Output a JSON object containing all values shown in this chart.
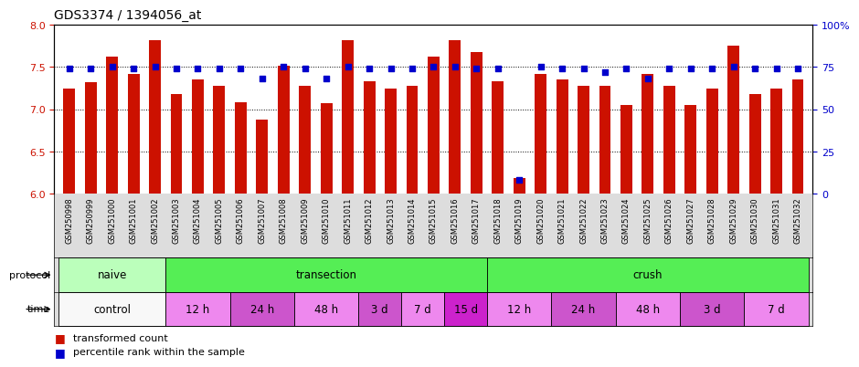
{
  "title": "GDS3374 / 1394056_at",
  "samples": [
    "GSM250998",
    "GSM250999",
    "GSM251000",
    "GSM251001",
    "GSM251002",
    "GSM251003",
    "GSM251004",
    "GSM251005",
    "GSM251006",
    "GSM251007",
    "GSM251008",
    "GSM251009",
    "GSM251010",
    "GSM251011",
    "GSM251012",
    "GSM251013",
    "GSM251014",
    "GSM251015",
    "GSM251016",
    "GSM251017",
    "GSM251018",
    "GSM251019",
    "GSM251020",
    "GSM251021",
    "GSM251022",
    "GSM251023",
    "GSM251024",
    "GSM251025",
    "GSM251026",
    "GSM251027",
    "GSM251028",
    "GSM251029",
    "GSM251030",
    "GSM251031",
    "GSM251032"
  ],
  "bar_values": [
    7.25,
    7.32,
    7.62,
    7.42,
    7.82,
    7.18,
    7.35,
    7.28,
    7.08,
    6.88,
    7.52,
    7.28,
    7.07,
    7.82,
    7.33,
    7.25,
    7.28,
    7.62,
    7.82,
    7.68,
    7.33,
    6.18,
    7.42,
    7.35,
    7.28,
    7.28,
    7.05,
    7.42,
    7.28,
    7.05,
    7.25,
    7.75,
    7.18,
    7.25,
    7.35
  ],
  "percentile_values": [
    74,
    74,
    75,
    74,
    75,
    74,
    74,
    74,
    74,
    68,
    75,
    74,
    68,
    75,
    74,
    74,
    74,
    75,
    75,
    74,
    74,
    8,
    75,
    74,
    74,
    72,
    74,
    68,
    74,
    74,
    74,
    75,
    74,
    74,
    74
  ],
  "left_ylim": [
    6.0,
    8.0
  ],
  "right_ylim": [
    0,
    100
  ],
  "left_yticks": [
    6.0,
    6.5,
    7.0,
    7.5,
    8.0
  ],
  "right_yticks": [
    0,
    25,
    50,
    75,
    100
  ],
  "bar_color": "#cc1100",
  "dot_color": "#0000cc",
  "protocol_groups": [
    {
      "label": "naive",
      "start": 0,
      "end": 4,
      "color": "#bbffbb"
    },
    {
      "label": "transection",
      "start": 5,
      "end": 19,
      "color": "#55ee55"
    },
    {
      "label": "crush",
      "start": 20,
      "end": 34,
      "color": "#55ee55"
    }
  ],
  "time_groups": [
    {
      "label": "control",
      "start": 0,
      "end": 4,
      "color": "#f8f8f8"
    },
    {
      "label": "12 h",
      "start": 5,
      "end": 7,
      "color": "#ee88ee"
    },
    {
      "label": "24 h",
      "start": 8,
      "end": 10,
      "color": "#cc55cc"
    },
    {
      "label": "48 h",
      "start": 11,
      "end": 13,
      "color": "#ee88ee"
    },
    {
      "label": "3 d",
      "start": 14,
      "end": 15,
      "color": "#cc55cc"
    },
    {
      "label": "7 d",
      "start": 16,
      "end": 17,
      "color": "#ee88ee"
    },
    {
      "label": "15 d",
      "start": 18,
      "end": 19,
      "color": "#cc22cc"
    },
    {
      "label": "12 h",
      "start": 20,
      "end": 22,
      "color": "#ee88ee"
    },
    {
      "label": "24 h",
      "start": 23,
      "end": 25,
      "color": "#cc55cc"
    },
    {
      "label": "48 h",
      "start": 26,
      "end": 28,
      "color": "#ee88ee"
    },
    {
      "label": "3 d",
      "start": 29,
      "end": 31,
      "color": "#cc55cc"
    },
    {
      "label": "7 d",
      "start": 32,
      "end": 34,
      "color": "#ee88ee"
    }
  ],
  "legend": [
    {
      "label": "transformed count",
      "color": "#cc1100"
    },
    {
      "label": "percentile rank within the sample",
      "color": "#0000cc"
    }
  ]
}
